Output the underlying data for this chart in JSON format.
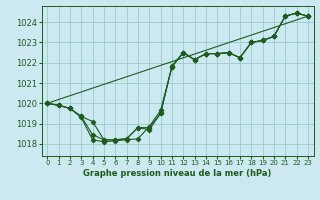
{
  "title": "Graphe pression niveau de la mer (hPa)",
  "bg_color": "#cce8f0",
  "grid_color": "#99cccc",
  "line_color": "#1e5c1e",
  "xlim": [
    -0.5,
    23.5
  ],
  "ylim": [
    1017.4,
    1024.8
  ],
  "yticks": [
    1018,
    1019,
    1020,
    1021,
    1022,
    1023,
    1024
  ],
  "xtick_labels": [
    "0",
    "1",
    "2",
    "3",
    "4",
    "5",
    "6",
    "7",
    "8",
    "9",
    "10",
    "11",
    "12",
    "13",
    "14",
    "15",
    "16",
    "17",
    "18",
    "19",
    "20",
    "21",
    "22",
    "23"
  ],
  "s1": [
    1020.0,
    1019.9,
    1019.75,
    1019.3,
    1018.2,
    1018.1,
    1018.15,
    1018.2,
    1018.25,
    1018.85,
    1019.65,
    1021.8,
    1022.5,
    1022.15,
    1022.45,
    1022.45,
    1022.5,
    1022.25,
    1023.0,
    1023.1,
    1023.3,
    1024.3,
    1024.45,
    1024.3
  ],
  "s2": [
    1020.0,
    1019.9,
    1019.75,
    1019.35,
    1019.1,
    1018.2,
    1018.2,
    1018.25,
    1018.8,
    1018.7,
    1019.5,
    1021.8,
    1022.5,
    1022.15,
    1022.45,
    1022.45,
    1022.5,
    1022.25,
    1023.0,
    1023.1,
    1023.3,
    1024.3,
    1024.45,
    1024.3
  ],
  "s3": [
    1020.0,
    1019.9,
    1019.75,
    1019.35,
    1018.45,
    1018.2,
    1018.2,
    1018.25,
    1018.8,
    1018.8,
    1019.5,
    1021.85,
    1022.5,
    1022.15,
    1022.45,
    1022.45,
    1022.5,
    1022.25,
    1023.0,
    1023.1,
    1023.3,
    1024.3,
    1024.45,
    1024.3
  ],
  "trend_x": [
    0,
    23
  ],
  "trend_y": [
    1020.0,
    1024.3
  ]
}
